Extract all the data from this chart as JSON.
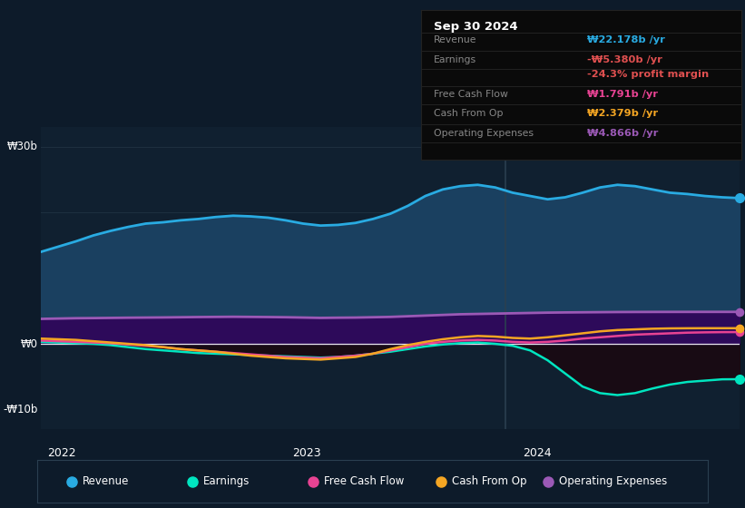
{
  "background_color": "#0d1b2a",
  "plot_bg_color": "#102030",
  "revenue_color": "#29abe2",
  "earnings_color": "#00e5c0",
  "free_cash_flow_color": "#e84393",
  "cash_from_op_color": "#f5a623",
  "operating_expenses_color": "#9b59b6",
  "revenue_fill_color": "#1a4a6b",
  "title": "Sep 30 2024",
  "ylabel_30b": "₩30b",
  "ylabel_0": "₩0",
  "ylabel_neg10b": "-₩10b",
  "xlabel_2022": "2022",
  "xlabel_2023": "2023",
  "xlabel_2024": "2024",
  "y_min": -13,
  "y_max": 33,
  "legend_items": [
    "Revenue",
    "Earnings",
    "Free Cash Flow",
    "Cash From Op",
    "Operating Expenses"
  ],
  "legend_colors": [
    "#29abe2",
    "#00e5c0",
    "#e84393",
    "#f5a623",
    "#9b59b6"
  ],
  "revenue": [
    14.0,
    14.8,
    15.6,
    16.5,
    17.2,
    17.8,
    18.3,
    18.5,
    18.8,
    19.0,
    19.3,
    19.5,
    19.4,
    19.2,
    18.8,
    18.3,
    18.0,
    18.1,
    18.4,
    19.0,
    19.8,
    21.0,
    22.5,
    23.5,
    24.0,
    24.2,
    23.8,
    23.0,
    22.5,
    22.0,
    22.3,
    23.0,
    23.8,
    24.2,
    24.0,
    23.5,
    23.0,
    22.8,
    22.5,
    22.3,
    22.178
  ],
  "earnings": [
    0.3,
    0.2,
    0.1,
    0.0,
    -0.2,
    -0.5,
    -0.8,
    -1.0,
    -1.2,
    -1.4,
    -1.5,
    -1.6,
    -1.7,
    -1.8,
    -1.9,
    -2.0,
    -2.1,
    -2.0,
    -1.8,
    -1.5,
    -1.2,
    -0.8,
    -0.4,
    -0.1,
    0.1,
    0.2,
    0.0,
    -0.3,
    -1.0,
    -2.5,
    -4.5,
    -6.5,
    -7.5,
    -7.8,
    -7.5,
    -6.8,
    -6.2,
    -5.8,
    -5.6,
    -5.4,
    -5.38
  ],
  "free_cash_flow": [
    0.5,
    0.4,
    0.3,
    0.2,
    0.1,
    -0.1,
    -0.3,
    -0.5,
    -0.8,
    -1.0,
    -1.2,
    -1.4,
    -1.6,
    -1.8,
    -2.0,
    -2.1,
    -2.2,
    -2.0,
    -1.8,
    -1.5,
    -1.0,
    -0.5,
    0.0,
    0.3,
    0.5,
    0.6,
    0.5,
    0.3,
    0.2,
    0.3,
    0.5,
    0.8,
    1.0,
    1.2,
    1.4,
    1.5,
    1.6,
    1.7,
    1.75,
    1.78,
    1.791
  ],
  "cash_from_op": [
    0.8,
    0.7,
    0.6,
    0.4,
    0.2,
    0.0,
    -0.2,
    -0.5,
    -0.8,
    -1.0,
    -1.2,
    -1.5,
    -1.8,
    -2.0,
    -2.2,
    -2.3,
    -2.4,
    -2.2,
    -2.0,
    -1.5,
    -0.8,
    -0.2,
    0.3,
    0.7,
    1.0,
    1.2,
    1.1,
    0.9,
    0.8,
    1.0,
    1.3,
    1.6,
    1.9,
    2.1,
    2.2,
    2.3,
    2.35,
    2.37,
    2.379,
    2.379,
    2.379
  ],
  "operating_expenses": [
    3.8,
    3.85,
    3.9,
    3.92,
    3.95,
    3.98,
    4.0,
    4.02,
    4.05,
    4.08,
    4.1,
    4.12,
    4.1,
    4.08,
    4.05,
    4.0,
    3.95,
    3.98,
    4.0,
    4.05,
    4.1,
    4.2,
    4.3,
    4.4,
    4.5,
    4.55,
    4.6,
    4.65,
    4.7,
    4.75,
    4.78,
    4.8,
    4.82,
    4.84,
    4.85,
    4.856,
    4.86,
    4.863,
    4.865,
    4.866,
    4.866
  ],
  "dot_revenue": 22.178,
  "dot_earnings": -5.38,
  "dot_free_cash_flow": 1.791,
  "dot_cash_from_op": 2.379,
  "dot_operating_expenses": 4.866,
  "table_rows": [
    {
      "label": "Revenue",
      "value": "₩22.178b /yr",
      "value_color": "#29abe2",
      "label_color": "#888888"
    },
    {
      "label": "Earnings",
      "value": "-₩5.380b /yr",
      "value_color": "#e05050",
      "label_color": "#888888"
    },
    {
      "label": "",
      "value": "-24.3% profit margin",
      "value_color": "#e05050",
      "label_color": "#888888"
    },
    {
      "label": "Free Cash Flow",
      "value": "₩1.791b /yr",
      "value_color": "#e84393",
      "label_color": "#888888"
    },
    {
      "label": "Cash From Op",
      "value": "₩2.379b /yr",
      "value_color": "#f5a623",
      "label_color": "#888888"
    },
    {
      "label": "Operating Expenses",
      "value": "₩4.866b /yr",
      "value_color": "#9b59b6",
      "label_color": "#888888"
    }
  ]
}
